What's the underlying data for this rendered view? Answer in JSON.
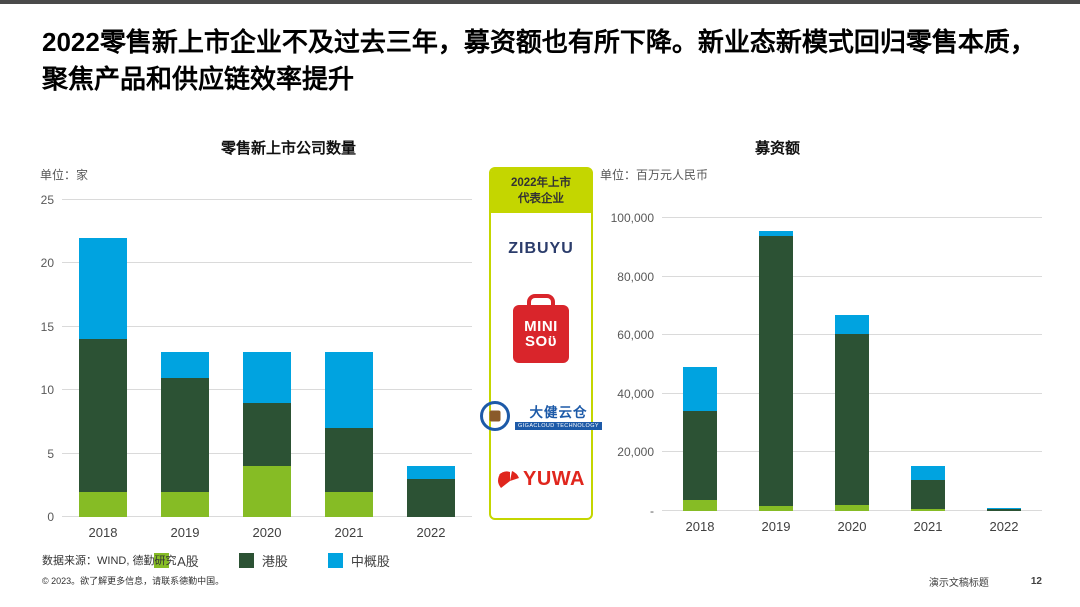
{
  "slide": {
    "title": "2022零售新上市企业不及过去三年，募资额也有所下降。新业态新模式回归零售本质，聚焦产品和供应链效率提升",
    "footer": {
      "source": "数据来源：WIND, 德勤研究",
      "copyright": "© 2023。欲了解更多信息，请联系德勤中国。",
      "doc_title": "演示文稿标题",
      "page_number": "12"
    }
  },
  "colors": {
    "a_share_green": "#86bc25",
    "hk_dark_green": "#2c5234",
    "adr_blue": "#00a3e0",
    "accent_yellow_green": "#c4d600",
    "gridline_grey": "#dadada"
  },
  "center_panel": {
    "header_line1": "2022年上市",
    "header_line2": "代表企业",
    "companies": [
      {
        "name": "zibuyu",
        "text": "ZIBUYU",
        "color": "#2b3c6b"
      },
      {
        "name": "miniso",
        "line1": "MINI",
        "line2": "SOϋ",
        "color": "#d9252b"
      },
      {
        "name": "gigacloud",
        "text": "大健云仓",
        "subtext": "GIGACLOUD TECHNOLOGY",
        "color": "#1d5aa8"
      },
      {
        "name": "yuwa",
        "text": "YUWA",
        "color": "#e0261d"
      }
    ]
  },
  "chart_data": [
    {
      "type": "bar",
      "stacked": true,
      "title": "零售新上市公司数量",
      "unit_label": "单位：家",
      "categories": [
        "2018",
        "2019",
        "2020",
        "2021",
        "2022"
      ],
      "series": [
        {
          "name": "A股",
          "color": "#86bc25",
          "values": [
            2,
            2,
            4,
            2,
            0
          ]
        },
        {
          "name": "港股",
          "color": "#2c5234",
          "values": [
            12,
            9,
            5,
            5,
            3
          ]
        },
        {
          "name": "中概股",
          "color": "#00a3e0",
          "values": [
            8,
            2,
            4,
            6,
            1
          ]
        }
      ],
      "totals": [
        22,
        13,
        13,
        13,
        4
      ],
      "ylim": [
        0,
        25
      ],
      "yticks": [
        0,
        5,
        10,
        15,
        20,
        25
      ],
      "ytick_labels": [
        "0",
        "5",
        "10",
        "15",
        "20",
        "25"
      ],
      "grid": true,
      "legend_position": "bottom"
    },
    {
      "type": "bar",
      "stacked": true,
      "title": "募资额",
      "unit_label": "单位：百万元人民币",
      "categories": [
        "2018",
        "2019",
        "2020",
        "2021",
        "2022"
      ],
      "series": [
        {
          "name": "A股",
          "color": "#86bc25",
          "values": [
            3800,
            1800,
            2200,
            800,
            0
          ]
        },
        {
          "name": "港股",
          "color": "#2c5234",
          "values": [
            30200,
            92200,
            58300,
            9900,
            700
          ]
        },
        {
          "name": "中概股",
          "color": "#00a3e0",
          "values": [
            15000,
            1500,
            6500,
            4500,
            500
          ]
        }
      ],
      "totals": [
        49000,
        95500,
        67000,
        15200,
        1200
      ],
      "ylim": [
        0,
        100000
      ],
      "yticks": [
        0,
        20000,
        40000,
        60000,
        80000,
        100000
      ],
      "ytick_labels": [
        "-",
        "20,000",
        "40,000",
        "60,000",
        "80,000",
        "100,000"
      ],
      "grid": true,
      "legend_position": "none"
    }
  ]
}
